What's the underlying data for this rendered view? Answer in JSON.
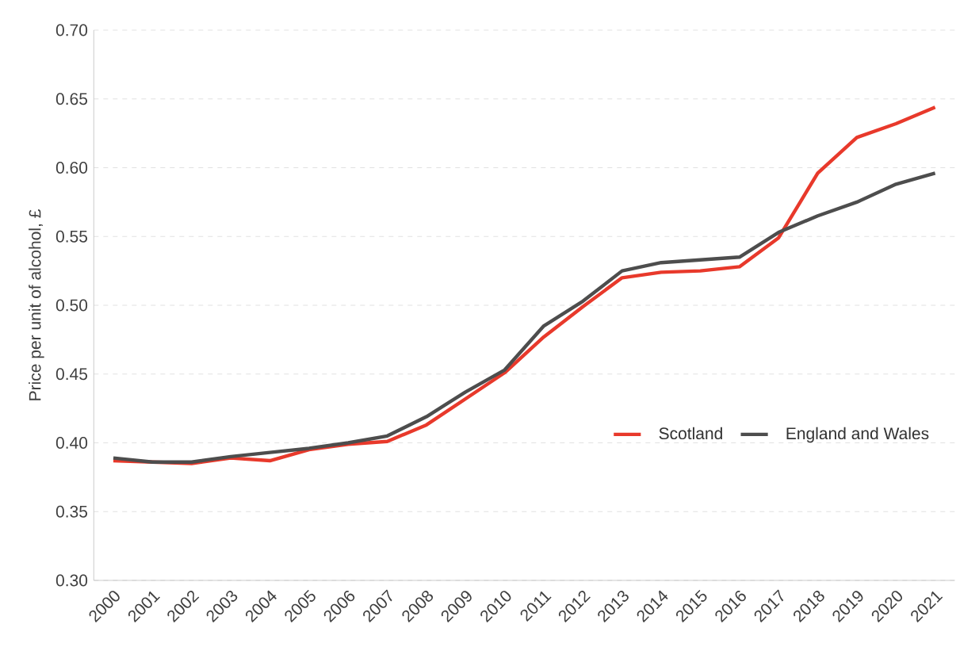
{
  "chart_data": {
    "type": "line",
    "ylabel": "Price per unit of alcohol, £",
    "categories": [
      "2000",
      "2001",
      "2002",
      "2003",
      "2004",
      "2005",
      "2006",
      "2007",
      "2008",
      "2009",
      "2010",
      "2011",
      "2012",
      "2013",
      "2014",
      "2015",
      "2016",
      "2017",
      "2018",
      "2019",
      "2020",
      "2021"
    ],
    "series": [
      {
        "name": "Scotland",
        "color": "#e8392b",
        "values": [
          0.387,
          0.386,
          0.385,
          0.389,
          0.387,
          0.395,
          0.399,
          0.401,
          0.413,
          0.432,
          0.451,
          0.477,
          0.499,
          0.52,
          0.524,
          0.525,
          0.528,
          0.549,
          0.596,
          0.622,
          0.632,
          0.644
        ]
      },
      {
        "name": "England and Wales",
        "color": "#4d4d4d",
        "values": [
          0.389,
          0.386,
          0.386,
          0.39,
          0.393,
          0.396,
          0.4,
          0.405,
          0.419,
          0.437,
          0.453,
          0.485,
          0.503,
          0.525,
          0.531,
          0.533,
          0.535,
          0.553,
          0.565,
          0.575,
          0.588,
          0.596
        ]
      }
    ],
    "ylim": [
      0.3,
      0.7
    ],
    "yticks": [
      {
        "value": 0.3,
        "label": "0.30"
      },
      {
        "value": 0.35,
        "label": "0.35"
      },
      {
        "value": 0.4,
        "label": "0.40"
      },
      {
        "value": 0.45,
        "label": "0.45"
      },
      {
        "value": 0.5,
        "label": "0.50"
      },
      {
        "value": 0.55,
        "label": "0.55"
      },
      {
        "value": 0.6,
        "label": "0.60"
      },
      {
        "value": 0.65,
        "label": "0.65"
      },
      {
        "value": 0.7,
        "label": "0.70"
      }
    ],
    "grid": "y",
    "legend": "bottom right",
    "marker": "none",
    "line_style": "solid"
  }
}
